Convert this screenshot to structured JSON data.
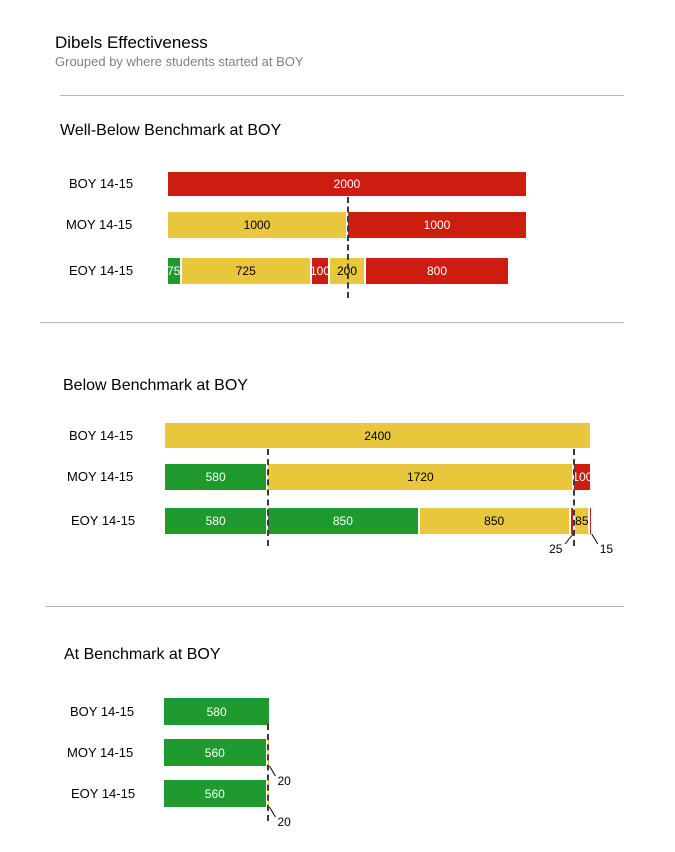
{
  "header": {
    "title": "Dibels Effectiveness",
    "subtitle": "Grouped by where students started at BOY"
  },
  "colors": {
    "green": "#1e9a2e",
    "yellow": "#e8c73c",
    "red": "#cc1d10"
  },
  "chart_data": [
    {
      "type": "bar",
      "title": "Well-Below Benchmark at BOY",
      "orientation": "horizontal-stacked",
      "categories": [
        "BOY 14-15",
        "MOY 14-15",
        "EOY 14-15"
      ],
      "rows": [
        {
          "label": "BOY 14-15",
          "segments": [
            {
              "value": 2000,
              "color": "red",
              "label": "2000"
            }
          ]
        },
        {
          "label": "MOY 14-15",
          "segments": [
            {
              "value": 1000,
              "color": "yellow",
              "label": "1000"
            },
            {
              "value": 1000,
              "color": "red",
              "label": "1000"
            }
          ]
        },
        {
          "label": "EOY 14-15",
          "segments": [
            {
              "value": 75,
              "color": "green",
              "label": "75"
            },
            {
              "value": 725,
              "color": "yellow",
              "label": "725"
            },
            {
              "value": 100,
              "color": "red",
              "label": "100"
            },
            {
              "value": 200,
              "color": "yellow",
              "label": "200"
            },
            {
              "value": 800,
              "color": "red",
              "label": "800"
            }
          ]
        }
      ],
      "reference_lines": [
        1000
      ],
      "callouts": []
    },
    {
      "type": "bar",
      "title": "Below Benchmark at BOY",
      "orientation": "horizontal-stacked",
      "categories": [
        "BOY 14-15",
        "MOY 14-15",
        "EOY 14-15"
      ],
      "rows": [
        {
          "label": "BOY 14-15",
          "segments": [
            {
              "value": 2400,
              "color": "yellow",
              "label": "2400"
            }
          ]
        },
        {
          "label": "MOY 14-15",
          "segments": [
            {
              "value": 580,
              "color": "green",
              "label": "580"
            },
            {
              "value": 1720,
              "color": "yellow",
              "label": "1720"
            },
            {
              "value": 100,
              "color": "red",
              "label": "100"
            }
          ]
        },
        {
          "label": "EOY 14-15",
          "segments": [
            {
              "value": 580,
              "color": "green",
              "label": "580"
            },
            {
              "value": 850,
              "color": "green",
              "label": "850"
            },
            {
              "value": 850,
              "color": "yellow",
              "label": "850"
            },
            {
              "value": 25,
              "color": "red",
              "label": ""
            },
            {
              "value": 85,
              "color": "yellow",
              "label": "85"
            },
            {
              "value": 15,
              "color": "red",
              "label": ""
            }
          ]
        }
      ],
      "reference_lines": [
        580,
        2300
      ],
      "callouts": [
        {
          "row": 2,
          "segment": 3,
          "label": "25"
        },
        {
          "row": 2,
          "segment": 5,
          "label": "15"
        }
      ]
    },
    {
      "type": "bar",
      "title": "At Benchmark at BOY",
      "orientation": "horizontal-stacked",
      "categories": [
        "BOY 14-15",
        "MOY 14-15",
        "EOY 14-15"
      ],
      "rows": [
        {
          "label": "BOY 14-15",
          "segments": [
            {
              "value": 580,
              "color": "green",
              "label": "580"
            }
          ]
        },
        {
          "label": "MOY 14-15",
          "segments": [
            {
              "value": 560,
              "color": "green",
              "label": "560"
            },
            {
              "value": 20,
              "color": "yellow",
              "label": ""
            }
          ]
        },
        {
          "label": "EOY 14-15",
          "segments": [
            {
              "value": 560,
              "color": "green",
              "label": "560"
            },
            {
              "value": 20,
              "color": "yellow",
              "label": ""
            }
          ]
        }
      ],
      "reference_lines": [
        560
      ],
      "callouts": [
        {
          "row": 1,
          "segment": 1,
          "label": "20"
        },
        {
          "row": 2,
          "segment": 1,
          "label": "20"
        }
      ]
    }
  ]
}
